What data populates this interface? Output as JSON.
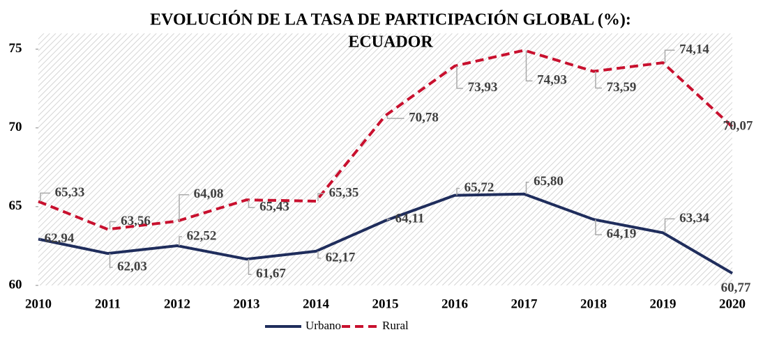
{
  "chart_data": {
    "type": "line",
    "title": [
      "EVOLUCIÓN DE LA TASA DE PARTICIPACIÓN GLOBAL (%):",
      "ECUADOR"
    ],
    "categories": [
      "2010",
      "2011",
      "2012",
      "2013",
      "2014",
      "2015",
      "2016",
      "2017",
      "2018",
      "2019",
      "2020"
    ],
    "series": [
      {
        "name": "Urbano",
        "color": "#1f2d5c",
        "dash": false,
        "values": [
          62.94,
          62.03,
          62.52,
          61.67,
          62.17,
          64.11,
          65.72,
          65.8,
          64.19,
          63.34,
          60.77
        ],
        "value_labels": [
          "62,94",
          "62,03",
          "62,52",
          "61,67",
          "62,17",
          "64,11",
          "65,72",
          "65,80",
          "64,19",
          "63,34",
          "60,77"
        ]
      },
      {
        "name": "Rural",
        "color": "#c8102e",
        "dash": true,
        "values": [
          65.33,
          63.56,
          64.08,
          65.43,
          65.35,
          70.78,
          73.93,
          74.93,
          73.59,
          74.14,
          70.07
        ],
        "value_labels": [
          "65,33",
          "63,56",
          "64,08",
          "65,43",
          "65,35",
          "70,78",
          "73,93",
          "74,93",
          "73,59",
          "74,14",
          "70,07"
        ]
      }
    ],
    "ylim": [
      60,
      76
    ],
    "yticks": [
      60,
      65,
      70,
      75
    ],
    "legend": "bottom"
  }
}
